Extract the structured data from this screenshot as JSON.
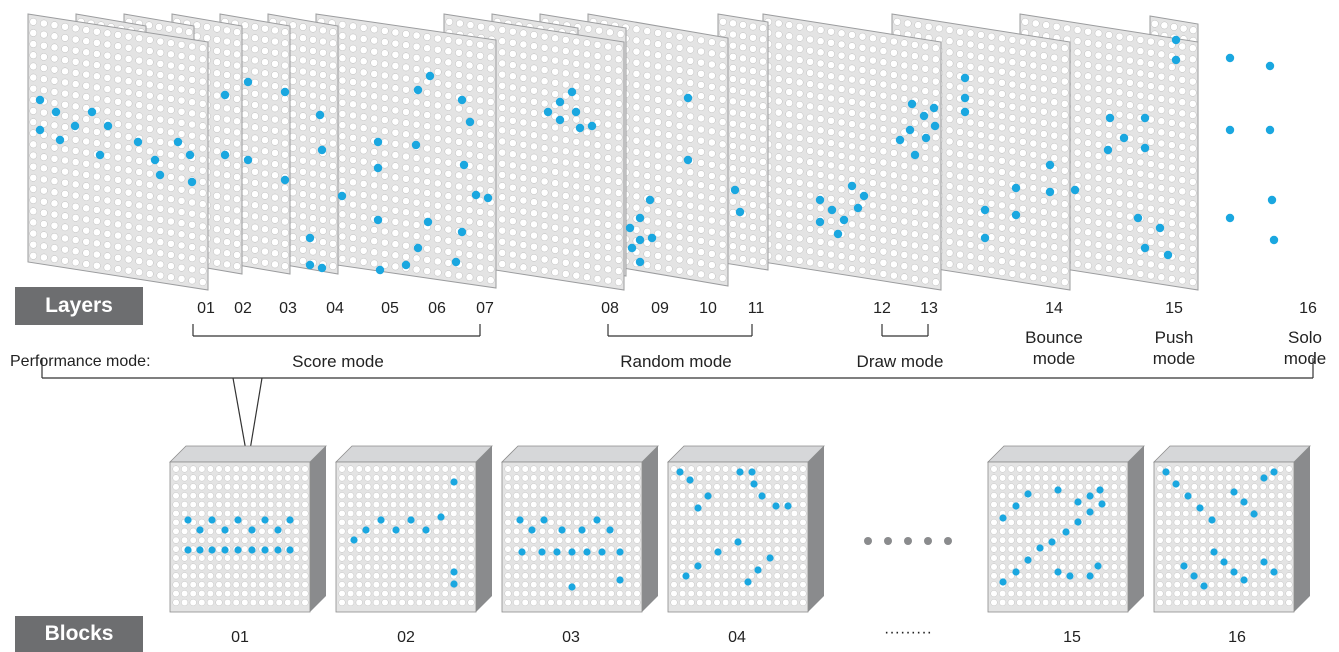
{
  "badges": {
    "layers": "Layers",
    "blocks": "Blocks"
  },
  "performance_label": "Performance mode:",
  "layers": [
    {
      "num": "01"
    },
    {
      "num": "02"
    },
    {
      "num": "03"
    },
    {
      "num": "04"
    },
    {
      "num": "05"
    },
    {
      "num": "06"
    },
    {
      "num": "07"
    },
    {
      "num": "08"
    },
    {
      "num": "09"
    },
    {
      "num": "10"
    },
    {
      "num": "11"
    },
    {
      "num": "12"
    },
    {
      "num": "13"
    },
    {
      "num": "14"
    },
    {
      "num": "15"
    },
    {
      "num": "16"
    }
  ],
  "modes": {
    "score": "Score mode",
    "random": "Random mode",
    "draw": "Draw mode",
    "bounce": "Bounce\nmode",
    "push": "Push\nmode",
    "solo": "Solo\nmode"
  },
  "blocks": [
    {
      "label": "01"
    },
    {
      "label": "02"
    },
    {
      "label": "03"
    },
    {
      "label": "04"
    },
    {
      "label": "15"
    },
    {
      "label": "16"
    }
  ],
  "ellipsis_label": "·········",
  "colors": {
    "badge": "#6d6e70",
    "dot_empty": "#ffffff",
    "dot_active": "#1aa7e0",
    "dot_trail": "#b7e3f6",
    "panel_bg": "#e4e4e4",
    "cube_side": "#8a8b8d",
    "cube_top": "#d6d7d9"
  }
}
